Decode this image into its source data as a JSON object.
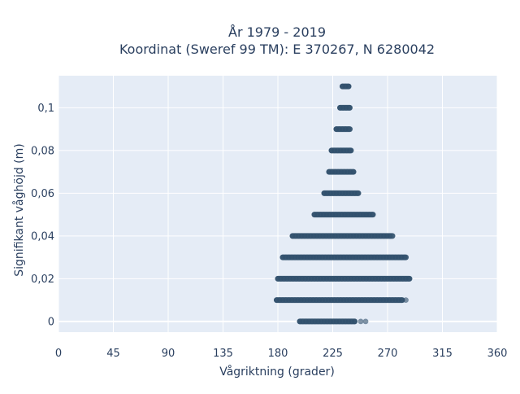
{
  "chart_data": {
    "type": "scatter",
    "title": "År 1979 - 2019",
    "subtitle": "Koordinat (Sweref 99 TM): E 370267, N 6280042",
    "xlabel": "Vågriktning (grader)",
    "ylabel": "Signifikant våghöjd (m)",
    "xlim": [
      0,
      360
    ],
    "ylim": [
      -0.005,
      0.115
    ],
    "x_ticks": [
      0,
      45,
      90,
      135,
      180,
      225,
      270,
      315,
      360
    ],
    "x_tick_labels": [
      "0",
      "45",
      "90",
      "135",
      "180",
      "225",
      "270",
      "315",
      "360"
    ],
    "y_ticks": [
      0,
      0.02,
      0.04,
      0.06,
      0.08,
      0.1
    ],
    "y_tick_labels": [
      "0",
      "0,02",
      "0,04",
      "0,06",
      "0,08",
      "0,1"
    ],
    "grid": true,
    "marker_color": "#2f4f6a",
    "background_color": "#e5ecf6",
    "bands": [
      {
        "y": 0.0,
        "x_min": 198,
        "x_max": 243,
        "outliers": [
          248,
          252
        ]
      },
      {
        "y": 0.01,
        "x_min": 179,
        "x_max": 282,
        "outliers": [
          285
        ]
      },
      {
        "y": 0.02,
        "x_min": 180,
        "x_max": 288
      },
      {
        "y": 0.03,
        "x_min": 184,
        "x_max": 285
      },
      {
        "y": 0.04,
        "x_min": 192,
        "x_max": 274
      },
      {
        "y": 0.05,
        "x_min": 210,
        "x_max": 258
      },
      {
        "y": 0.06,
        "x_min": 218,
        "x_max": 246
      },
      {
        "y": 0.07,
        "x_min": 222,
        "x_max": 242
      },
      {
        "y": 0.08,
        "x_min": 224,
        "x_max": 240
      },
      {
        "y": 0.09,
        "x_min": 228,
        "x_max": 239
      },
      {
        "y": 0.1,
        "x_min": 231,
        "x_max": 239
      },
      {
        "y": 0.11,
        "x_min": 233,
        "x_max": 238
      }
    ]
  }
}
